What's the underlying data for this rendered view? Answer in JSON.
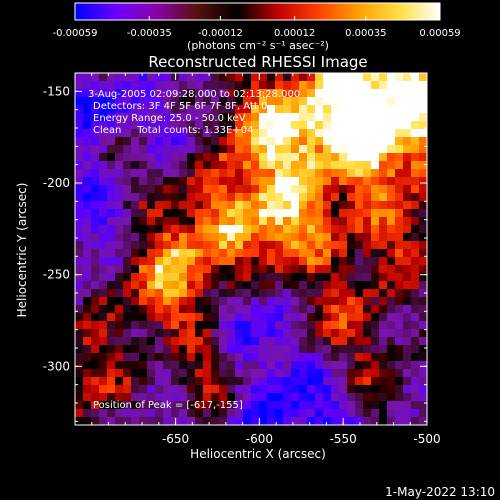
{
  "chart_data": {
    "type": "heatmap",
    "title": "Reconstructed RHESSI Image",
    "xlabel": "Heliocentric X (arcsec)",
    "ylabel": "Heliocentric Y (arcsec)",
    "xlim": [
      -710,
      -500
    ],
    "ylim": [
      -332,
      -140
    ],
    "x_ticks": [
      "-650",
      "-600",
      "-550",
      "-500"
    ],
    "x_tick_values": [
      -650,
      -600,
      -550,
      -500
    ],
    "y_ticks": [
      "-150",
      "-200",
      "-250",
      "-300"
    ],
    "y_tick_values": [
      -150,
      -200,
      -250,
      -300
    ],
    "colorbar": {
      "ticks": [
        "-0.00059",
        "-0.00035",
        "-0.00012",
        "0.00012",
        "0.00035",
        "0.00059"
      ],
      "tick_values": [
        -0.00059,
        -0.00035,
        -0.00012,
        0.00012,
        0.00035,
        0.00059
      ],
      "range": [
        -0.00059,
        0.00059
      ],
      "unit_label": "(photons cm⁻² s⁻¹ asec⁻²)"
    },
    "annotations": [
      "3-Aug-2005 02:09:28.000 to 02:13:28.000",
      "Detectors: 3F 4F 5F 6F 7F 8F, Att 0",
      "Energy Range: 25.0 - 50.0 keV",
      "Clean     Total counts: 1.33E+04"
    ],
    "peak_label": "Position of Peak = [-617,-155]",
    "peak_position": [
      -617,
      -155
    ],
    "colormap_colors": [
      "#0000ff",
      "#6a00ff",
      "#8a00aa",
      "#5a1010",
      "#000000",
      "#c00000",
      "#ff4000",
      "#ffa000",
      "#ffe040",
      "#ffffff"
    ]
  },
  "footer": {
    "date": "1-May-2022 13:10"
  }
}
